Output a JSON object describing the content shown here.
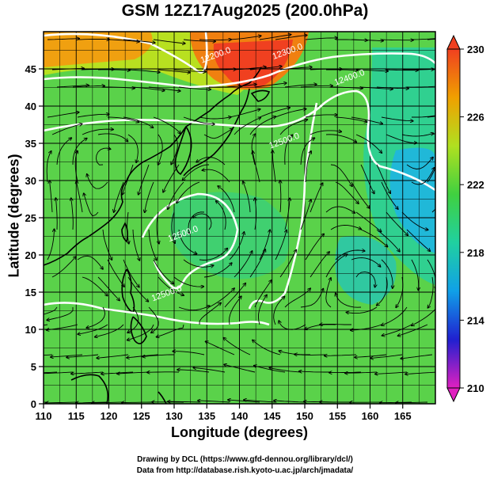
{
  "title": "GSM 12Z17Aug2025 (200.0hPa)",
  "x_axis": {
    "label": "Longitude (degrees)",
    "ticks": [
      "110",
      "115",
      "120",
      "125",
      "130",
      "135",
      "140",
      "145",
      "150",
      "155",
      "160",
      "165"
    ]
  },
  "y_axis": {
    "label": "Latitude  (degrees)",
    "ticks": [
      "0",
      "5",
      "10",
      "15",
      "20",
      "25",
      "30",
      "35",
      "40",
      "45"
    ]
  },
  "colorbar": {
    "labels": [
      "210",
      "214",
      "218",
      "222",
      "226",
      "230"
    ],
    "stops": [
      "#e020c0",
      "#2020d0",
      "#10a0e8",
      "#20d0a0",
      "#40d040",
      "#b0e020",
      "#f0a000",
      "#f04020"
    ]
  },
  "map": {
    "lon_range": [
      110,
      170
    ],
    "lat_range": [
      0,
      50
    ],
    "grid": true,
    "contour_labels": [
      {
        "text": "12200.0",
        "lon": 136.5,
        "lat": 46.5
      },
      {
        "text": "12300.0",
        "lon": 147.5,
        "lat": 47
      },
      {
        "text": "12400.0",
        "lon": 157,
        "lat": 43.5
      },
      {
        "text": "12500.0",
        "lon": 147,
        "lat": 35
      },
      {
        "text": "12500.0",
        "lon": 131.5,
        "lat": 22.5
      },
      {
        "text": "12500.0",
        "lon": 129,
        "lat": 14.5
      }
    ]
  },
  "credits": [
    "Drawing by DCL (https://www.gfd-dennou.org/library/dcl/)",
    "Data from http://database.rish.kyoto-u.ac.jp/arch/jmadata/"
  ]
}
